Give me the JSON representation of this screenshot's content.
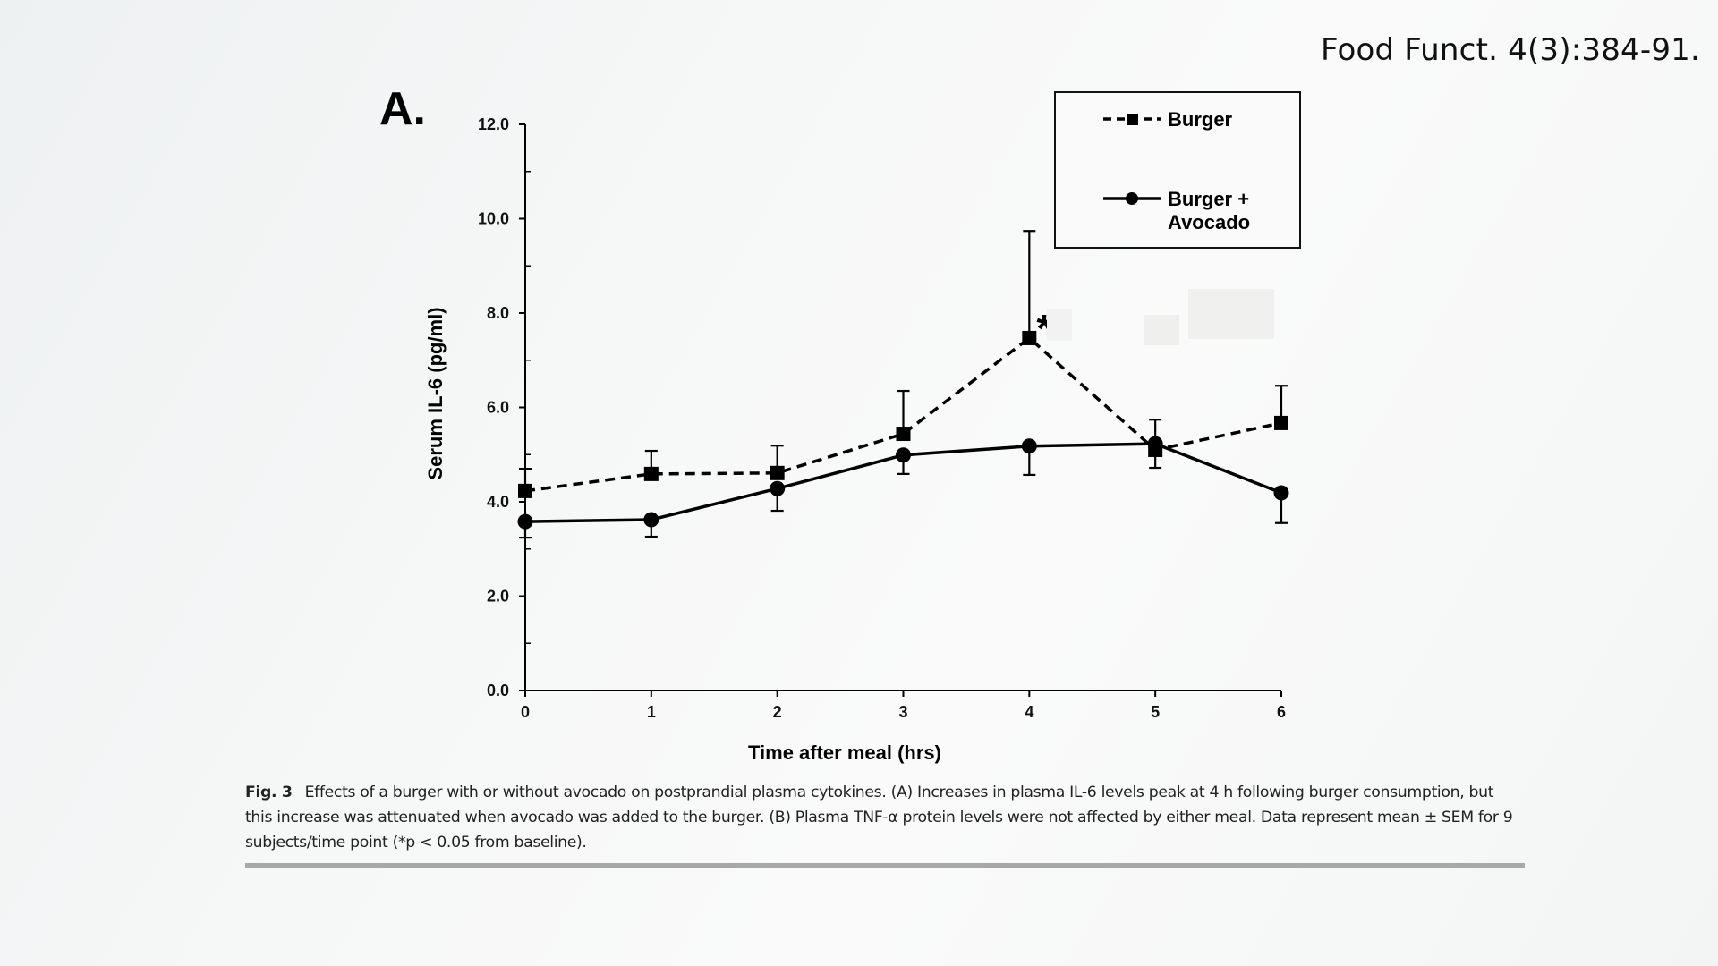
{
  "citation": "Food Funct. 4(3):384-91.",
  "panel_label": "A.",
  "chart_data": {
    "type": "line",
    "title": "",
    "xlabel": "Time after meal (hrs)",
    "ylabel": "Serum IL-6 (pg/ml)",
    "x": [
      0,
      1,
      2,
      3,
      4,
      5,
      6
    ],
    "xlim": [
      0,
      6
    ],
    "ylim": [
      0,
      12
    ],
    "x_ticks": [
      "0",
      "1",
      "2",
      "3",
      "4",
      "5",
      "6"
    ],
    "y_ticks": [
      "0.0",
      "2.0",
      "4.0",
      "6.0",
      "8.0",
      "10.0",
      "12.0"
    ],
    "grid": false,
    "legend_position": "top-right",
    "series": [
      {
        "name": "Burger",
        "line_style": "dashed",
        "marker": "square",
        "values": [
          4.23,
          4.59,
          4.61,
          5.44,
          7.47,
          5.1,
          5.67
        ],
        "error": [
          0.47,
          0.49,
          0.58,
          0.91,
          2.27,
          0.64,
          0.79
        ],
        "error_direction": "up"
      },
      {
        "name": "Burger + Avocado",
        "line_style": "solid",
        "marker": "circle",
        "values": [
          3.58,
          3.62,
          4.28,
          4.99,
          5.18,
          5.23,
          4.19
        ],
        "error": [
          0.34,
          0.36,
          0.47,
          0.4,
          0.61,
          0.51,
          0.64
        ],
        "error_direction": "down"
      }
    ],
    "annotations": [
      {
        "text": "*",
        "x": 4,
        "series": "Burger",
        "meaning": "p < 0.05 from baseline"
      }
    ],
    "legend": [
      {
        "label_line1": "Burger",
        "label_line2": ""
      },
      {
        "label_line1": "Burger +",
        "label_line2": "Avocado"
      }
    ]
  },
  "caption": {
    "fig_label": "Fig. 3",
    "text": "Effects of a burger with or without avocado on postprandial plasma cytokines. (A) Increases in plasma IL-6 levels peak at 4 h following burger consumption, but this increase was attenuated when avocado was added to the burger. (B) Plasma TNF-α protein levels were not affected by either meal. Data represent mean ± SEM for 9 subjects/time point (*p < 0.05 from baseline)."
  }
}
